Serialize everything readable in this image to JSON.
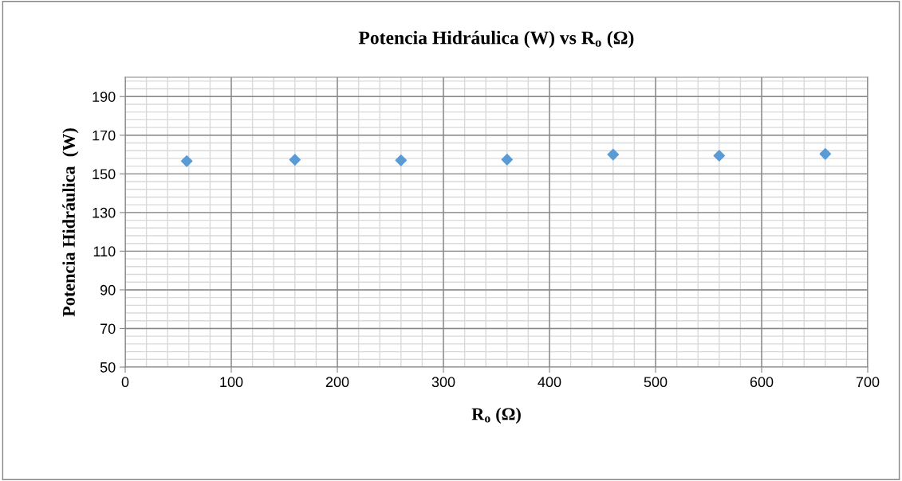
{
  "chart_data": {
    "type": "scatter",
    "title": "Potencia Hidráulica (W) vs R$_{o}$ (Ω)",
    "xlabel": "R$_{o}$ (Ω)",
    "ylabel": "Potencia Hidráulica  (W)",
    "x": [
      58,
      160,
      260,
      360,
      460,
      560,
      660
    ],
    "series": [
      {
        "color": "#5b9bd5",
        "values": [
          156.6,
          157.3,
          157.0,
          157.4,
          160.0,
          159.4,
          160.3
        ]
      }
    ],
    "xlim": [
      0,
      700
    ],
    "xticks": [
      0,
      100,
      200,
      300,
      400,
      500,
      600,
      700
    ],
    "ylim": [
      50,
      200
    ],
    "yticks": [
      50,
      70,
      90,
      110,
      130,
      150,
      170,
      190
    ],
    "grid": true,
    "marker": "diamond"
  }
}
